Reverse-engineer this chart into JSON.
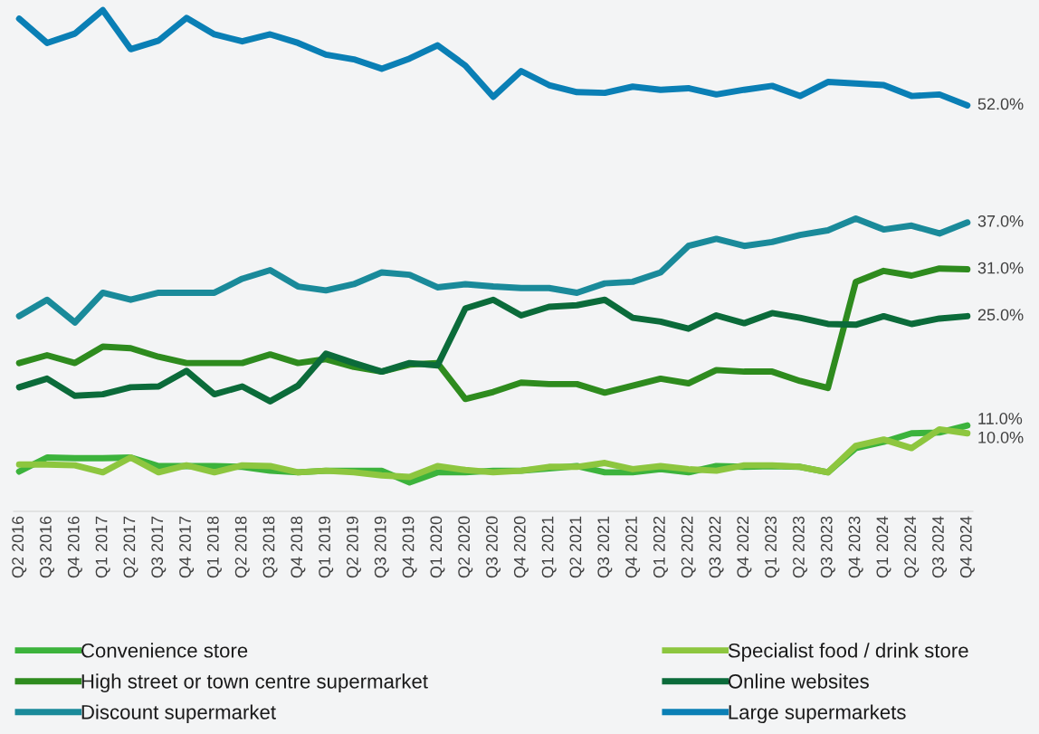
{
  "chart_data": {
    "type": "line",
    "categories": [
      "Q2 2016",
      "Q3 2016",
      "Q4 2016",
      "Q1 2017",
      "Q2 2017",
      "Q3 2017",
      "Q4 2017",
      "Q1 2018",
      "Q2 2018",
      "Q3 2018",
      "Q4 2018",
      "Q1 2019",
      "Q2 2019",
      "Q3 2019",
      "Q4 2019",
      "Q1 2020",
      "Q2 2020",
      "Q3 2020",
      "Q4 2020",
      "Q1 2021",
      "Q2 2021",
      "Q3 2021",
      "Q4 2021",
      "Q1 2022",
      "Q2 2022",
      "Q3 2022",
      "Q4 2022",
      "Q1 2023",
      "Q2 2023",
      "Q3 2023",
      "Q4 2023",
      "Q1 2024",
      "Q2 2024",
      "Q3 2024",
      "Q4 2024"
    ],
    "ylim": [
      0,
      65.5
    ],
    "tick_labels": "x",
    "grid": false,
    "legend": "bottom",
    "marker": "none",
    "line_style": "solid",
    "series": [
      {
        "name": "Convenience store",
        "color": "#3cb33c",
        "values": [
          5.1,
          6.9,
          6.8,
          6.8,
          6.9,
          5.8,
          5.8,
          5.8,
          5.7,
          5.2,
          5.0,
          5.2,
          5.2,
          5.2,
          3.7,
          5.0,
          5.0,
          5.2,
          5.2,
          5.5,
          5.8,
          5.0,
          5.0,
          5.4,
          5.0,
          5.8,
          5.7,
          5.8,
          5.7,
          5.0,
          8.1,
          8.9,
          10.0,
          10.1,
          11.0
        ],
        "value_labels": [
          null,
          null,
          null,
          null,
          null,
          null,
          null,
          null,
          null,
          null,
          null,
          null,
          null,
          null,
          null,
          null,
          null,
          null,
          null,
          null,
          null,
          null,
          null,
          null,
          null,
          null,
          null,
          null,
          null,
          null,
          null,
          null,
          null,
          null,
          "11.0%"
        ]
      },
      {
        "name": "Specialist food / drink store",
        "color": "#8dc63f",
        "values": [
          6.0,
          6.0,
          5.9,
          5.0,
          6.9,
          5.0,
          5.9,
          5.0,
          5.9,
          5.8,
          5.0,
          5.2,
          5.0,
          4.6,
          4.4,
          5.8,
          5.3,
          5.0,
          5.2,
          5.7,
          5.7,
          6.2,
          5.4,
          5.8,
          5.4,
          5.2,
          5.9,
          5.9,
          5.7,
          5.0,
          8.4,
          9.2,
          8.1,
          10.5,
          10.0
        ],
        "value_labels": [
          null,
          null,
          null,
          null,
          null,
          null,
          null,
          null,
          null,
          null,
          null,
          null,
          null,
          null,
          null,
          null,
          null,
          null,
          null,
          null,
          null,
          null,
          null,
          null,
          null,
          null,
          null,
          null,
          null,
          null,
          null,
          null,
          null,
          null,
          "10.0%"
        ]
      },
      {
        "name": "High street or town centre supermarket",
        "color": "#2e8b1e",
        "values": [
          19.0,
          20.0,
          19.0,
          21.1,
          20.9,
          19.8,
          19.0,
          19.0,
          19.0,
          20.1,
          19.0,
          19.5,
          18.5,
          17.9,
          18.8,
          19.0,
          14.4,
          15.3,
          16.5,
          16.3,
          16.3,
          15.2,
          16.1,
          17.0,
          16.4,
          18.1,
          17.9,
          17.9,
          16.7,
          15.8,
          29.4,
          30.8,
          30.2,
          31.1,
          31.0
        ],
        "value_labels": [
          null,
          null,
          null,
          null,
          null,
          null,
          null,
          null,
          null,
          null,
          null,
          null,
          null,
          null,
          null,
          null,
          null,
          null,
          null,
          null,
          null,
          null,
          null,
          null,
          null,
          null,
          null,
          null,
          null,
          null,
          null,
          null,
          null,
          null,
          "31.0%"
        ]
      },
      {
        "name": "Online websites",
        "color": "#0b6b3a",
        "values": [
          15.9,
          17.0,
          14.8,
          15.0,
          15.9,
          16.0,
          18.0,
          15.0,
          16.0,
          14.1,
          16.1,
          20.2,
          19.0,
          17.9,
          19.0,
          18.7,
          26.0,
          27.1,
          25.1,
          26.2,
          26.4,
          27.1,
          24.8,
          24.3,
          23.4,
          25.1,
          24.1,
          25.4,
          24.8,
          24.0,
          23.9,
          25.0,
          24.0,
          24.7,
          25.0
        ],
        "value_labels": [
          null,
          null,
          null,
          null,
          null,
          null,
          null,
          null,
          null,
          null,
          null,
          null,
          null,
          null,
          null,
          null,
          null,
          null,
          null,
          null,
          null,
          null,
          null,
          null,
          null,
          null,
          null,
          null,
          null,
          null,
          null,
          null,
          null,
          null,
          "25.0%"
        ]
      },
      {
        "name": "Discount supermarket",
        "color": "#1a8a9a",
        "values": [
          25.0,
          27.1,
          24.2,
          28.0,
          27.1,
          28.0,
          28.0,
          28.0,
          29.8,
          30.9,
          28.8,
          28.3,
          29.1,
          30.6,
          30.3,
          28.7,
          29.1,
          28.8,
          28.6,
          28.6,
          28.0,
          29.2,
          29.4,
          30.6,
          34.0,
          34.9,
          34.0,
          34.5,
          35.4,
          36.0,
          37.5,
          36.1,
          36.6,
          35.6,
          37.0
        ],
        "value_labels": [
          null,
          null,
          null,
          null,
          null,
          null,
          null,
          null,
          null,
          null,
          null,
          null,
          null,
          null,
          null,
          null,
          null,
          null,
          null,
          null,
          null,
          null,
          null,
          null,
          null,
          null,
          null,
          null,
          null,
          null,
          null,
          null,
          null,
          null,
          "37.0%"
        ]
      },
      {
        "name": "Large supermarkets",
        "color": "#0a7fb5",
        "values": [
          63.1,
          60.0,
          61.2,
          64.2,
          59.2,
          60.3,
          63.2,
          61.1,
          60.2,
          61.1,
          60.0,
          58.5,
          57.9,
          56.7,
          58.0,
          59.7,
          57.1,
          53.1,
          56.4,
          54.6,
          53.7,
          53.6,
          54.4,
          54.0,
          54.2,
          53.4,
          54.0,
          54.5,
          53.2,
          55.0,
          54.8,
          54.6,
          53.2,
          53.4,
          52.0
        ],
        "value_labels": [
          null,
          null,
          null,
          null,
          null,
          null,
          null,
          null,
          null,
          null,
          null,
          null,
          null,
          null,
          null,
          null,
          null,
          null,
          null,
          null,
          null,
          null,
          null,
          null,
          null,
          null,
          null,
          null,
          null,
          null,
          null,
          null,
          null,
          null,
          "52.0%"
        ]
      }
    ]
  }
}
